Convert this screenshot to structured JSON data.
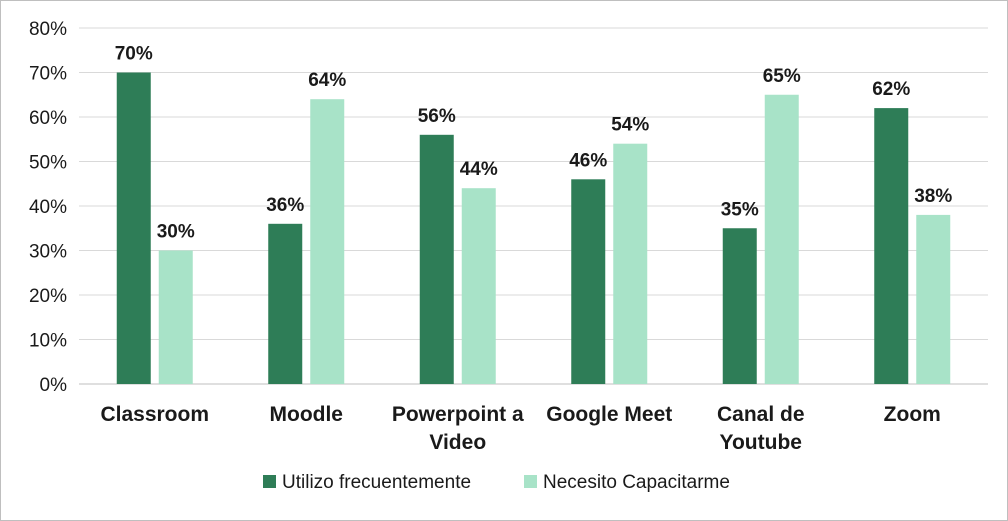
{
  "chart_data": {
    "type": "bar",
    "categories": [
      [
        "Classroom"
      ],
      [
        "Moodle"
      ],
      [
        "Powerpoint a",
        "Video"
      ],
      [
        "Google Meet"
      ],
      [
        "Canal de",
        "Youtube"
      ],
      [
        "Zoom"
      ]
    ],
    "series": [
      {
        "name": "Utilizo frecuentemente",
        "color": "#2e7d57",
        "values": [
          70,
          36,
          56,
          46,
          35,
          62
        ],
        "labels": [
          "70%",
          "36%",
          "56%",
          "46%",
          "35%",
          "62%"
        ]
      },
      {
        "name": "Necesito Capacitarme",
        "color": "#a8e3c8",
        "values": [
          30,
          64,
          44,
          54,
          65,
          38
        ],
        "labels": [
          "30%",
          "64%",
          "44%",
          "54%",
          "65%",
          "38%"
        ]
      }
    ],
    "y_ticks": [
      "0%",
      "10%",
      "20%",
      "30%",
      "40%",
      "50%",
      "60%",
      "70%",
      "80%"
    ],
    "ylim": [
      0,
      80
    ],
    "grid": true,
    "legend_position": "bottom",
    "title": "",
    "xlabel": "",
    "ylabel": ""
  }
}
